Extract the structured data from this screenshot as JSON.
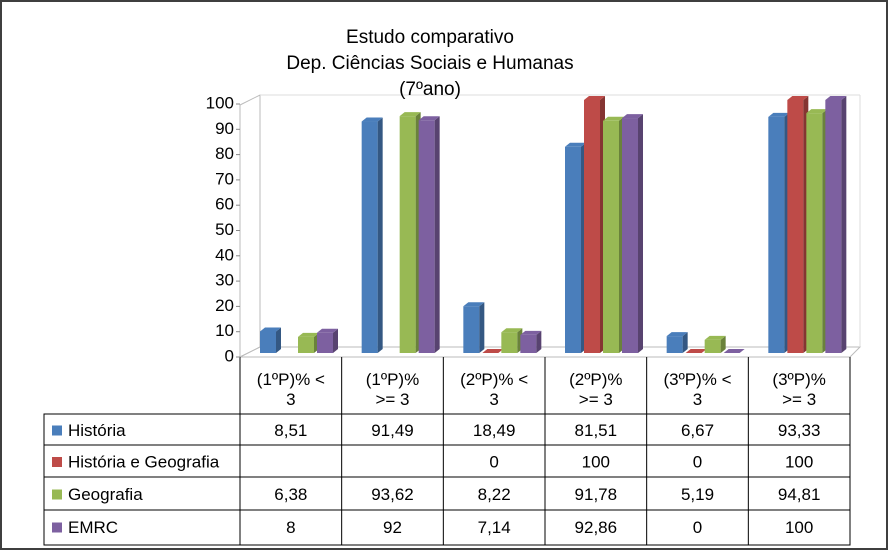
{
  "chart_data": {
    "type": "bar3d",
    "title": [
      "Estudo comparativo",
      "Dep. Ciências Sociais e Humanas",
      "(7ºano)"
    ],
    "categories": [
      "(1ºP)% < 3",
      "(1ºP)% >= 3",
      "(2ºP)% < 3",
      "(2ºP)% >= 3",
      "(3ºP)% < 3",
      "(3ºP)% >= 3"
    ],
    "series": [
      {
        "name": "História",
        "color": "#4a7ebb",
        "values": [
          8.51,
          91.49,
          18.49,
          81.51,
          6.67,
          93.33
        ],
        "value_labels": [
          "8,51",
          "91,49",
          "18,49",
          "81,51",
          "6,67",
          "93,33"
        ]
      },
      {
        "name": "História e Geografia",
        "color": "#be4b48",
        "values": [
          null,
          null,
          0,
          100,
          0,
          100
        ],
        "value_labels": [
          null,
          null,
          "0",
          "100",
          "0",
          "100"
        ]
      },
      {
        "name": "Geografia",
        "color": "#98b954",
        "values": [
          6.38,
          93.62,
          8.22,
          91.78,
          5.19,
          94.81
        ],
        "value_labels": [
          "6,38",
          "93,62",
          "8,22",
          "91,78",
          "5,19",
          "94,81"
        ]
      },
      {
        "name": "EMRC",
        "color": "#7d60a0",
        "values": [
          8,
          92,
          7.14,
          92.86,
          0,
          100
        ],
        "value_labels": [
          "8",
          "92",
          "7,14",
          "92,86",
          "0",
          "100"
        ]
      }
    ],
    "ylim": [
      0,
      100
    ],
    "yticks": [
      0,
      10,
      20,
      30,
      40,
      50,
      60,
      70,
      80,
      90,
      100
    ],
    "grid": false,
    "legend": "table"
  }
}
